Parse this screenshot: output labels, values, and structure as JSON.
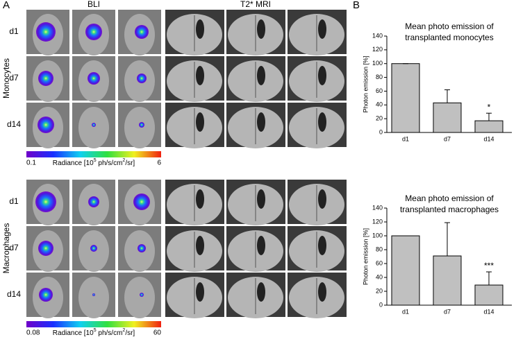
{
  "panel_a": {
    "label": "A",
    "bli_header": "BLI",
    "mri_header": "T2* MRI",
    "groups": [
      {
        "name": "Monocytes",
        "rows": [
          "d1",
          "d7",
          "d14"
        ],
        "scale_min": "0.1",
        "scale_max": "6"
      },
      {
        "name": "Macrophages",
        "rows": [
          "d1",
          "d7",
          "d14"
        ],
        "scale_min": "0.08",
        "scale_max": "60"
      }
    ],
    "scale_label": [
      "Radiance [10",
      "5",
      " ph/s/cm",
      "2",
      "/sr]"
    ]
  },
  "panel_b": {
    "label": "B"
  },
  "chart_data": [
    {
      "type": "bar",
      "title": "Mean photo emission of transplanted monocytes",
      "y_label": "Photon emission [%]",
      "categories": [
        "d1",
        "d7",
        "d14"
      ],
      "values": [
        100,
        43,
        17
      ],
      "errors": [
        0,
        19,
        11
      ],
      "color": "#c0c0c0",
      "annotations": [
        null,
        null,
        "*"
      ],
      "ylim": [
        0,
        140
      ],
      "yticks": [
        0,
        20,
        40,
        60,
        80,
        100,
        120,
        140
      ]
    },
    {
      "type": "bar",
      "title": "Mean photo emission of transplanted macrophages",
      "y_label": "Photon emission [%]",
      "categories": [
        "d1",
        "d7",
        "d14"
      ],
      "values": [
        100,
        71,
        29
      ],
      "errors": [
        0,
        48,
        19
      ],
      "color": "#c0c0c0",
      "annotations": [
        null,
        null,
        "***"
      ],
      "ylim": [
        0,
        140
      ],
      "yticks": [
        0,
        20,
        40,
        60,
        80,
        100,
        120,
        140
      ]
    }
  ]
}
